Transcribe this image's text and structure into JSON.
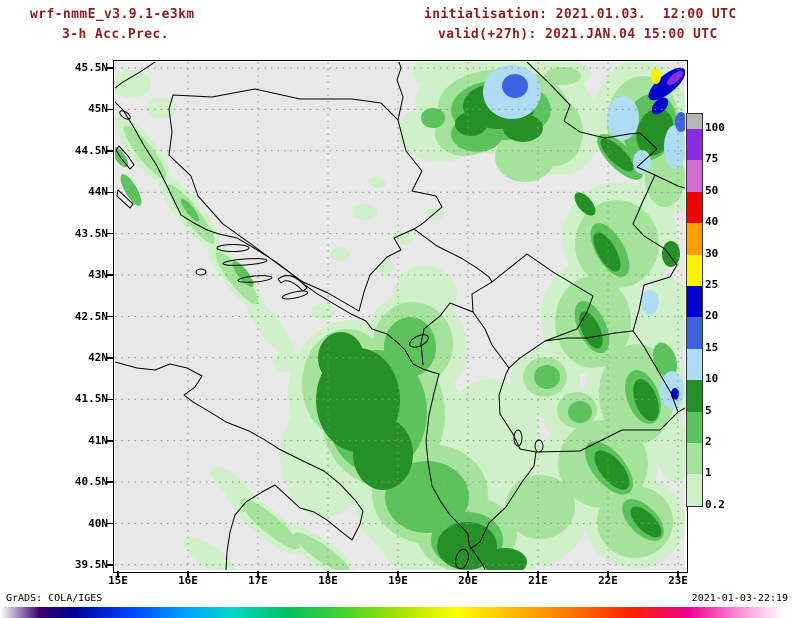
{
  "header": {
    "model_line": "wrf-nmmE_v3.9.1-e3km",
    "product_line": "3-h Acc.Prec.",
    "init_line": "initialisation: 2021.01.03.  12:00 UTC",
    "valid_line": "valid(+27h): 2021.JAN.04 15:00 UTC",
    "text_color": "#8a1d1d"
  },
  "map": {
    "bg_color": "#e8e8e8",
    "lat_labels": [
      "45.5N",
      "45N",
      "44.5N",
      "44N",
      "43.5N",
      "43N",
      "42.5N",
      "42N",
      "41.5N",
      "41N",
      "40.5N",
      "40N",
      "39.5N"
    ],
    "lon_labels": [
      "15E",
      "16E",
      "17E",
      "18E",
      "19E",
      "20E",
      "21E",
      "22E",
      "23E"
    ]
  },
  "colorbar": {
    "labels": [
      "100",
      "75",
      "50",
      "40",
      "30",
      "25",
      "20",
      "15",
      "10",
      "5",
      "2",
      "1",
      "0.2"
    ],
    "colors_top_to_bottom": [
      "#b5b5b5",
      "#8a2be2",
      "#cf6fcf",
      "#f00000",
      "#ffa000",
      "#fff200",
      "#0000cd",
      "#3f63e0",
      "#aedcf2",
      "#259025",
      "#5cc25c",
      "#a5e39c",
      "#cff0c8"
    ]
  },
  "footer": {
    "left": "GrADS: COLA/IGES",
    "right": "2021-01-03-22:19"
  }
}
